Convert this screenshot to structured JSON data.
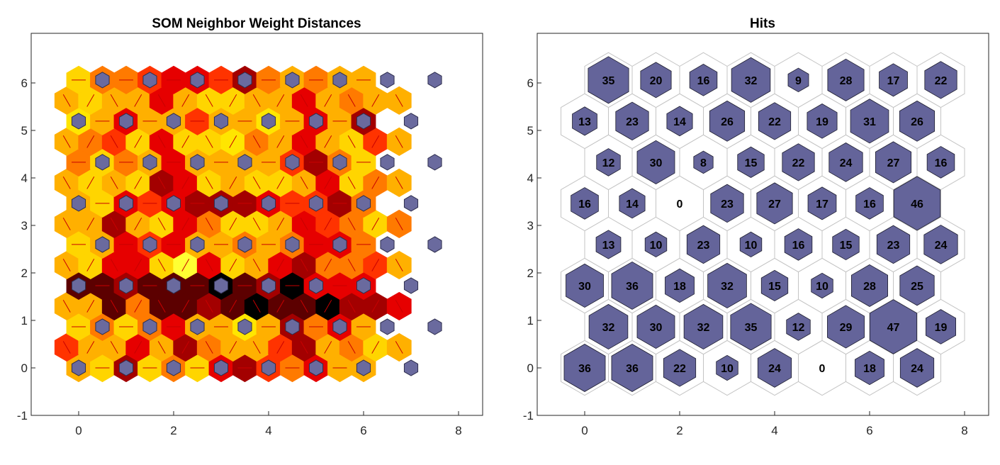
{
  "chart_data": [
    {
      "type": "heatmap",
      "title": "SOM Neighbor Weight Distances",
      "xlim": [
        -1,
        9
      ],
      "ylim": [
        -1,
        7
      ],
      "xticks": [
        0,
        2,
        4,
        6,
        8
      ],
      "yticks": [
        -1,
        0,
        1,
        2,
        3,
        4,
        5,
        6
      ],
      "grid": false,
      "legend": "none",
      "colormap": [
        "#000000",
        "#5c0000",
        "#a30000",
        "#e60000",
        "#ff3300",
        "#ff7a00",
        "#ffb000",
        "#ffd500",
        "#ffe600",
        "#ffff33"
      ],
      "neuron_color": "#6a6a9e",
      "neuron_rows": [
        {
          "y": 0.0,
          "x": [
            0,
            1,
            2,
            3,
            4,
            5,
            6,
            7
          ]
        },
        {
          "y": 0.866,
          "x": [
            0.5,
            1.5,
            2.5,
            3.5,
            4.5,
            5.5,
            6.5,
            7.5
          ]
        },
        {
          "y": 1.732,
          "x": [
            0,
            1,
            2,
            3,
            4,
            5,
            6,
            7
          ]
        },
        {
          "y": 2.598,
          "x": [
            0.5,
            1.5,
            2.5,
            3.5,
            4.5,
            5.5,
            6.5,
            7.5
          ]
        },
        {
          "y": 3.464,
          "x": [
            0,
            1,
            2,
            3,
            4,
            5,
            6,
            7
          ]
        },
        {
          "y": 4.33,
          "x": [
            0.5,
            1.5,
            2.5,
            3.5,
            4.5,
            5.5,
            6.5,
            7.5
          ]
        },
        {
          "y": 5.196,
          "x": [
            0,
            1,
            2,
            3,
            4,
            5,
            6,
            7
          ]
        },
        {
          "y": 6.062,
          "x": [
            0.5,
            1.5,
            2.5,
            3.5,
            4.5,
            5.5,
            6.5,
            7.5
          ]
        }
      ],
      "distance_levels": [
        [
          6,
          7,
          2,
          7,
          5,
          7,
          3,
          2,
          4,
          5,
          3,
          6,
          6
        ],
        [
          4,
          6,
          6,
          3,
          6,
          2,
          5,
          6,
          6,
          4,
          2,
          6,
          5,
          7,
          6
        ],
        [
          7,
          5,
          7,
          5,
          3,
          6,
          6,
          8,
          6,
          2,
          5,
          3,
          6
        ],
        [
          6,
          6,
          1,
          5,
          1,
          1,
          2,
          1,
          0,
          1,
          1,
          0,
          2,
          2,
          3
        ],
        [
          1,
          1,
          2,
          1,
          1,
          1,
          0,
          1,
          2,
          0,
          3,
          3,
          3
        ],
        [
          6,
          7,
          3,
          3,
          7,
          9,
          3,
          7,
          6,
          3,
          2,
          5,
          5,
          4,
          6
        ],
        [
          7,
          6,
          3,
          4,
          3,
          6,
          6,
          5,
          6,
          5,
          3,
          3,
          5
        ],
        [
          6,
          6,
          2,
          6,
          7,
          3,
          5,
          7,
          7,
          6,
          3,
          4,
          5,
          7,
          5
        ],
        [
          6,
          7,
          3,
          4,
          3,
          2,
          2,
          2,
          3,
          4,
          4,
          2,
          5
        ],
        [
          6,
          7,
          6,
          7,
          2,
          3,
          7,
          6,
          7,
          7,
          6,
          3,
          7,
          5,
          6
        ],
        [
          5,
          7,
          5,
          6,
          3,
          6,
          6,
          6,
          6,
          4,
          2,
          5,
          7
        ],
        [
          6,
          5,
          4,
          7,
          3,
          7,
          7,
          8,
          5,
          6,
          3,
          6,
          7,
          4,
          6
        ],
        [
          8,
          6,
          3,
          6,
          6,
          4,
          6,
          6,
          8,
          6,
          3,
          6,
          2
        ],
        [
          6,
          7,
          6,
          6,
          3,
          6,
          7,
          7,
          6,
          6,
          3,
          6,
          5,
          6,
          6
        ],
        [
          7,
          5,
          5,
          4,
          3,
          3,
          4,
          2,
          5,
          6,
          5,
          6,
          6
        ]
      ]
    },
    {
      "type": "heatmap",
      "title": "Hits",
      "xlim": [
        -1,
        9
      ],
      "ylim": [
        -1,
        7
      ],
      "xticks": [
        0,
        2,
        4,
        6,
        8
      ],
      "yticks": [
        -1,
        0,
        1,
        2,
        3,
        4,
        5,
        6
      ],
      "grid": false,
      "legend": "none",
      "fill_color": "#64649a",
      "max_hits": 47,
      "rows": [
        {
          "y": 0.0,
          "x": [
            0,
            1,
            2,
            3,
            4,
            5,
            6,
            7
          ],
          "hits": [
            36,
            36,
            22,
            10,
            24,
            0,
            18,
            24
          ]
        },
        {
          "y": 0.866,
          "x": [
            0.5,
            1.5,
            2.5,
            3.5,
            4.5,
            5.5,
            6.5,
            7.5
          ],
          "hits": [
            32,
            30,
            32,
            35,
            12,
            29,
            47,
            19
          ]
        },
        {
          "y": 1.732,
          "x": [
            0,
            1,
            2,
            3,
            4,
            5,
            6,
            7
          ],
          "hits": [
            30,
            36,
            18,
            32,
            15,
            10,
            28,
            25
          ]
        },
        {
          "y": 2.598,
          "x": [
            0.5,
            1.5,
            2.5,
            3.5,
            4.5,
            5.5,
            6.5,
            7.5
          ],
          "hits": [
            13,
            10,
            23,
            10,
            16,
            15,
            23,
            24
          ]
        },
        {
          "y": 3.464,
          "x": [
            0,
            1,
            2,
            3,
            4,
            5,
            6,
            7
          ],
          "hits": [
            16,
            14,
            0,
            23,
            27,
            17,
            16,
            46
          ]
        },
        {
          "y": 4.33,
          "x": [
            0.5,
            1.5,
            2.5,
            3.5,
            4.5,
            5.5,
            6.5,
            7.5
          ],
          "hits": [
            12,
            30,
            8,
            15,
            22,
            24,
            27,
            16
          ]
        },
        {
          "y": 5.196,
          "x": [
            0,
            1,
            2,
            3,
            4,
            5,
            6,
            7
          ],
          "hits": [
            13,
            23,
            14,
            26,
            22,
            19,
            31,
            26
          ]
        },
        {
          "y": 6.062,
          "x": [
            0.5,
            1.5,
            2.5,
            3.5,
            4.5,
            5.5,
            6.5,
            7.5
          ],
          "hits": [
            35,
            20,
            16,
            32,
            9,
            28,
            17,
            22
          ]
        }
      ]
    }
  ]
}
